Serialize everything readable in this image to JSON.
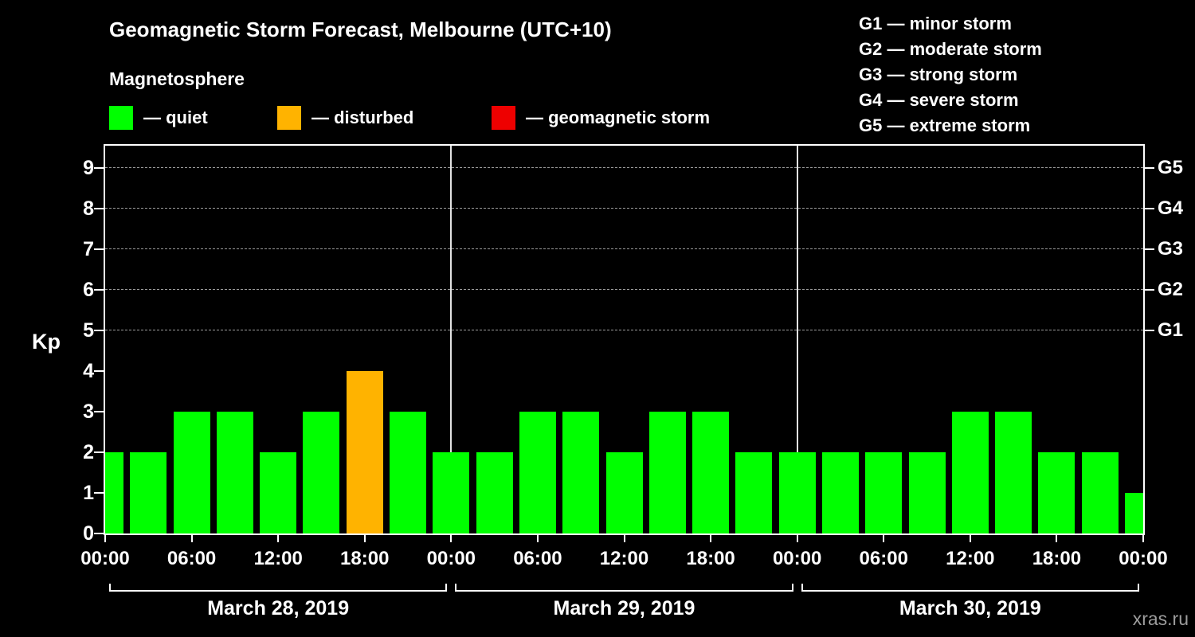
{
  "title": "Geomagnetic Storm Forecast, Melbourne (UTC+10)",
  "subtitle": "Magnetosphere",
  "legend": {
    "quiet": {
      "label": "— quiet",
      "color": "#00ff00"
    },
    "disturbed": {
      "label": "— disturbed",
      "color": "#ffb300"
    },
    "storm": {
      "label": "— geomagnetic storm",
      "color": "#ee0000"
    }
  },
  "g_legend": [
    "G1 — minor storm",
    "G2 — moderate storm",
    "G3 — strong storm",
    "G4 — severe storm",
    "G5 — extreme storm"
  ],
  "watermark": "xras.ru",
  "chart_data": {
    "type": "bar",
    "title": "Geomagnetic Storm Forecast, Melbourne (UTC+10)",
    "ylabel": "Kp",
    "ylim": [
      0,
      9.55
    ],
    "yticks": [
      0,
      1,
      2,
      3,
      4,
      5,
      6,
      7,
      8,
      9
    ],
    "gridlines_kp": [
      5,
      6,
      7,
      8,
      9
    ],
    "right_axis_labels": [
      {
        "kp": 5,
        "label": "G1"
      },
      {
        "kp": 6,
        "label": "G2"
      },
      {
        "kp": 7,
        "label": "G3"
      },
      {
        "kp": 8,
        "label": "G4"
      },
      {
        "kp": 9,
        "label": "G5"
      }
    ],
    "hours_total": 72,
    "hours_per_bar": 3,
    "x_tick_hours": [
      0,
      6,
      12,
      18,
      24,
      30,
      36,
      42,
      48,
      54,
      60,
      66,
      72
    ],
    "x_tick_labels": [
      "00:00",
      "06:00",
      "12:00",
      "18:00",
      "00:00",
      "06:00",
      "12:00",
      "18:00",
      "00:00",
      "06:00",
      "12:00",
      "18:00",
      "00:00"
    ],
    "day_boundary_hours": [
      24,
      48
    ],
    "day_labels": [
      "March 28, 2019",
      "March 29, 2019",
      "March 30, 2019"
    ],
    "bars": [
      {
        "hour": 0,
        "kp": 2,
        "status": "quiet"
      },
      {
        "hour": 3,
        "kp": 2,
        "status": "quiet"
      },
      {
        "hour": 6,
        "kp": 3,
        "status": "quiet"
      },
      {
        "hour": 9,
        "kp": 3,
        "status": "quiet"
      },
      {
        "hour": 12,
        "kp": 2,
        "status": "quiet"
      },
      {
        "hour": 15,
        "kp": 3,
        "status": "quiet"
      },
      {
        "hour": 18,
        "kp": 4,
        "status": "disturbed"
      },
      {
        "hour": 21,
        "kp": 3,
        "status": "quiet"
      },
      {
        "hour": 24,
        "kp": 2,
        "status": "quiet"
      },
      {
        "hour": 27,
        "kp": 2,
        "status": "quiet"
      },
      {
        "hour": 30,
        "kp": 3,
        "status": "quiet"
      },
      {
        "hour": 33,
        "kp": 3,
        "status": "quiet"
      },
      {
        "hour": 36,
        "kp": 2,
        "status": "quiet"
      },
      {
        "hour": 39,
        "kp": 3,
        "status": "quiet"
      },
      {
        "hour": 42,
        "kp": 3,
        "status": "quiet"
      },
      {
        "hour": 45,
        "kp": 2,
        "status": "quiet"
      },
      {
        "hour": 48,
        "kp": 2,
        "status": "quiet"
      },
      {
        "hour": 51,
        "kp": 2,
        "status": "quiet"
      },
      {
        "hour": 54,
        "kp": 2,
        "status": "quiet"
      },
      {
        "hour": 57,
        "kp": 2,
        "status": "quiet"
      },
      {
        "hour": 60,
        "kp": 3,
        "status": "quiet"
      },
      {
        "hour": 63,
        "kp": 3,
        "status": "quiet"
      },
      {
        "hour": 66,
        "kp": 2,
        "status": "quiet"
      },
      {
        "hour": 69,
        "kp": 2,
        "status": "quiet"
      },
      {
        "hour": 72,
        "kp": 1,
        "status": "quiet"
      }
    ]
  }
}
